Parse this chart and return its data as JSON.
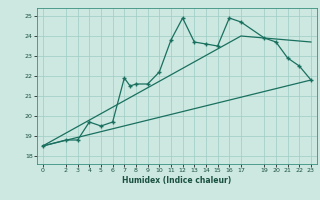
{
  "xlabel": "Humidex (Indice chaleur)",
  "bg_color": "#cce8e0",
  "grid_color": "#9ecec4",
  "line_color": "#1a7060",
  "xlim": [
    -0.5,
    23.5
  ],
  "ylim": [
    17.6,
    25.4
  ],
  "xticks": [
    0,
    2,
    3,
    4,
    5,
    6,
    7,
    8,
    9,
    10,
    11,
    12,
    13,
    14,
    15,
    16,
    17,
    19,
    20,
    21,
    22,
    23
  ],
  "yticks": [
    18,
    19,
    20,
    21,
    22,
    23,
    24,
    25
  ],
  "line1_x": [
    0,
    2,
    3,
    4,
    5,
    6,
    7,
    7.5,
    8,
    9,
    10,
    11,
    12,
    13,
    14,
    15,
    16,
    17,
    19,
    20,
    21,
    22,
    23
  ],
  "line1_y": [
    18.5,
    18.8,
    18.8,
    19.7,
    19.5,
    19.7,
    21.9,
    21.5,
    21.6,
    21.6,
    22.2,
    23.8,
    24.9,
    23.7,
    23.6,
    23.5,
    24.9,
    24.7,
    23.9,
    23.7,
    22.9,
    22.5,
    21.8
  ],
  "line2_x": [
    0,
    17,
    23
  ],
  "line2_y": [
    18.5,
    24.0,
    23.7
  ],
  "line3_x": [
    0,
    23
  ],
  "line3_y": [
    18.5,
    21.8
  ]
}
